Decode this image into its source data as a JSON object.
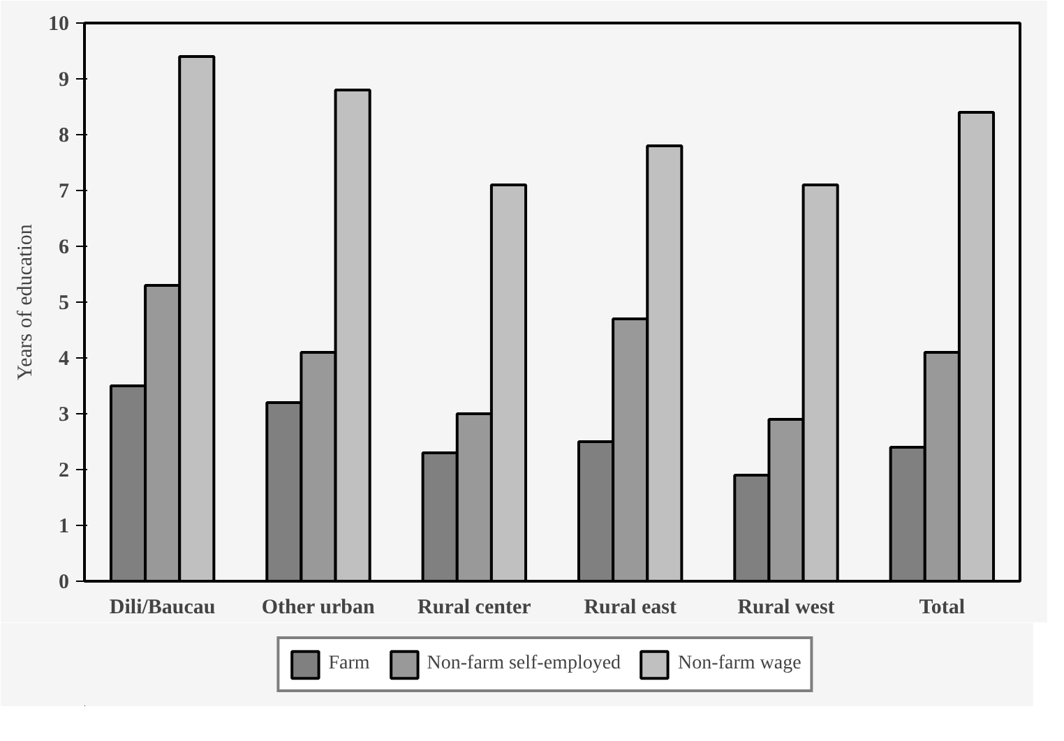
{
  "chart_data": {
    "type": "bar",
    "ylabel": "Years of education",
    "categories": [
      "Dili/Baucau",
      "Other urban",
      "Rural center",
      "Rural east",
      "Rural west",
      "Total"
    ],
    "series": [
      {
        "name": "Farm",
        "color": "#808080",
        "values": [
          3.5,
          3.2,
          2.3,
          2.5,
          1.9,
          2.4
        ]
      },
      {
        "name": "Non-farm self-employed",
        "color": "#999999",
        "values": [
          5.3,
          4.1,
          3.0,
          4.7,
          2.9,
          4.1
        ]
      },
      {
        "name": "Non-farm wage",
        "color": "#c0c0c0",
        "values": [
          9.4,
          8.8,
          7.1,
          7.8,
          7.1,
          8.4
        ]
      }
    ],
    "ylim": [
      0,
      10
    ],
    "yticks": [
      0,
      1,
      2,
      3,
      4,
      5,
      6,
      7,
      8,
      9,
      10
    ],
    "grid": false,
    "legend": "bottom"
  }
}
